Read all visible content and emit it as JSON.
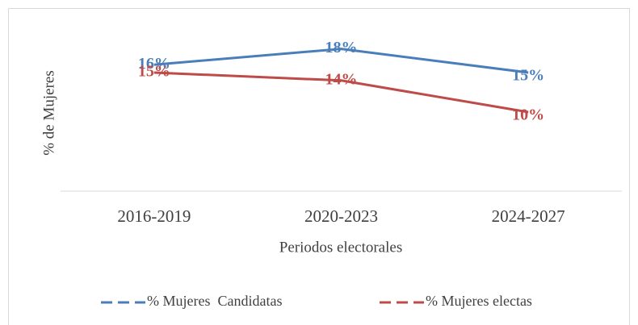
{
  "chart_data": {
    "type": "line",
    "x_label": "Periodos electorales",
    "y_label": "% de Mujeres",
    "categories": [
      "2016-2019",
      "2020-2023",
      "2024-2027"
    ],
    "series": [
      {
        "name": "% Mujeres  Candidatas",
        "color": "#4a7ebb",
        "values": [
          16,
          18,
          15
        ],
        "value_labels": [
          "16%",
          "18%",
          "15%"
        ]
      },
      {
        "name": "% Mujeres electas",
        "color": "#be4b48",
        "values": [
          15,
          14,
          10
        ],
        "value_labels": [
          "15%",
          "14%",
          "10%"
        ]
      }
    ],
    "ylim": [
      0,
      20
    ],
    "legend": "bottom"
  }
}
